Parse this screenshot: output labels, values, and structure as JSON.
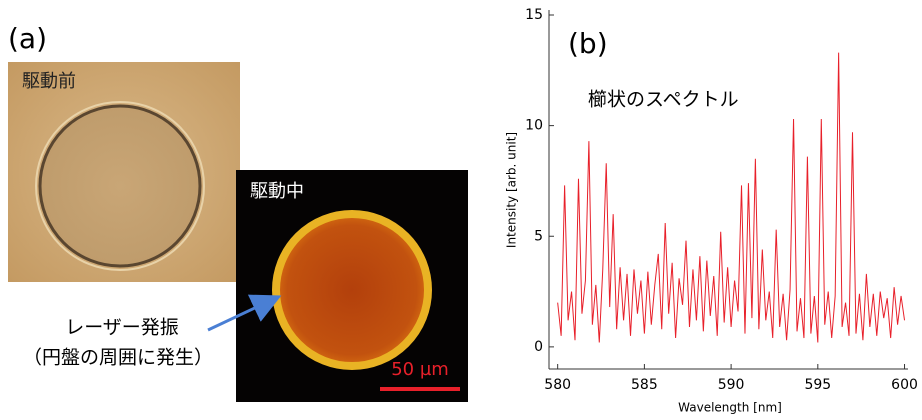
{
  "panel_a": {
    "label": "(a)",
    "before_label": "駆動前",
    "during_label": "駆動中",
    "callout_line1": "レーザー発振",
    "callout_line2": "（円盤の周囲に発生）",
    "scale_bar": "50 µm"
  },
  "chart_data": {
    "type": "line",
    "panel_label": "(b)",
    "annotation": "櫛状のスペクトル",
    "x_label": "Wavelength [nm]",
    "y_label": "Intensity [arb. unit]",
    "color": "#e8202a",
    "x": [
      580.0,
      580.2,
      580.4,
      580.6,
      580.8,
      581.0,
      581.2,
      581.4,
      581.6,
      581.8,
      582.0,
      582.2,
      582.4,
      582.6,
      582.8,
      583.0,
      583.2,
      583.4,
      583.6,
      583.8,
      584.0,
      584.2,
      584.4,
      584.6,
      584.8,
      585.0,
      585.2,
      585.4,
      585.6,
      585.8,
      586.0,
      586.2,
      586.4,
      586.6,
      586.8,
      587.0,
      587.2,
      587.4,
      587.6,
      587.8,
      588.0,
      588.2,
      588.4,
      588.6,
      588.8,
      589.0,
      589.2,
      589.4,
      589.6,
      589.8,
      590.0,
      590.2,
      590.4,
      590.6,
      590.8,
      591.0,
      591.2,
      591.4,
      591.6,
      591.8,
      592.0,
      592.2,
      592.4,
      592.6,
      592.8,
      593.0,
      593.2,
      593.4,
      593.6,
      593.8,
      594.0,
      594.2,
      594.4,
      594.6,
      594.8,
      595.0,
      595.2,
      595.4,
      595.6,
      595.8,
      596.0,
      596.2,
      596.4,
      596.6,
      596.8,
      597.0,
      597.2,
      597.4,
      597.6,
      597.8,
      598.0,
      598.2,
      598.4,
      598.6,
      598.8,
      599.0,
      599.2,
      599.4,
      599.6,
      599.8,
      600.0
    ],
    "values": [
      2.0,
      0.5,
      7.3,
      1.2,
      2.5,
      0.3,
      7.6,
      1.5,
      3.0,
      9.3,
      1.0,
      2.8,
      0.2,
      3.5,
      8.3,
      1.8,
      6.0,
      0.8,
      3.6,
      1.2,
      3.3,
      0.5,
      3.5,
      1.5,
      3.0,
      0.6,
      3.4,
      1.0,
      2.8,
      4.2,
      0.8,
      5.6,
      1.5,
      3.8,
      0.4,
      3.1,
      1.9,
      4.8,
      0.9,
      3.5,
      1.2,
      4.1,
      0.7,
      3.9,
      1.4,
      3.2,
      0.5,
      5.2,
      1.1,
      3.6,
      0.9,
      3.0,
      1.6,
      7.3,
      0.6,
      7.4,
      1.3,
      8.5,
      0.8,
      4.4,
      1.2,
      2.5,
      0.4,
      5.3,
      0.9,
      2.4,
      0.3,
      2.6,
      10.3,
      0.7,
      2.2,
      0.4,
      8.6,
      0.6,
      2.3,
      0.2,
      10.3,
      1.0,
      2.5,
      0.4,
      2.3,
      13.3,
      0.9,
      2.0,
      0.5,
      9.7,
      0.6,
      2.4,
      0.3,
      3.3,
      0.9,
      2.4,
      0.5,
      2.5,
      1.3,
      2.2,
      0.4,
      2.7,
      1.0,
      2.3,
      1.2
    ],
    "xlim": [
      579.5,
      600.2
    ],
    "ylim": [
      -1,
      15
    ],
    "xticks": [
      580,
      585,
      590,
      595,
      600
    ],
    "yticks": [
      0,
      5,
      10,
      15
    ]
  }
}
